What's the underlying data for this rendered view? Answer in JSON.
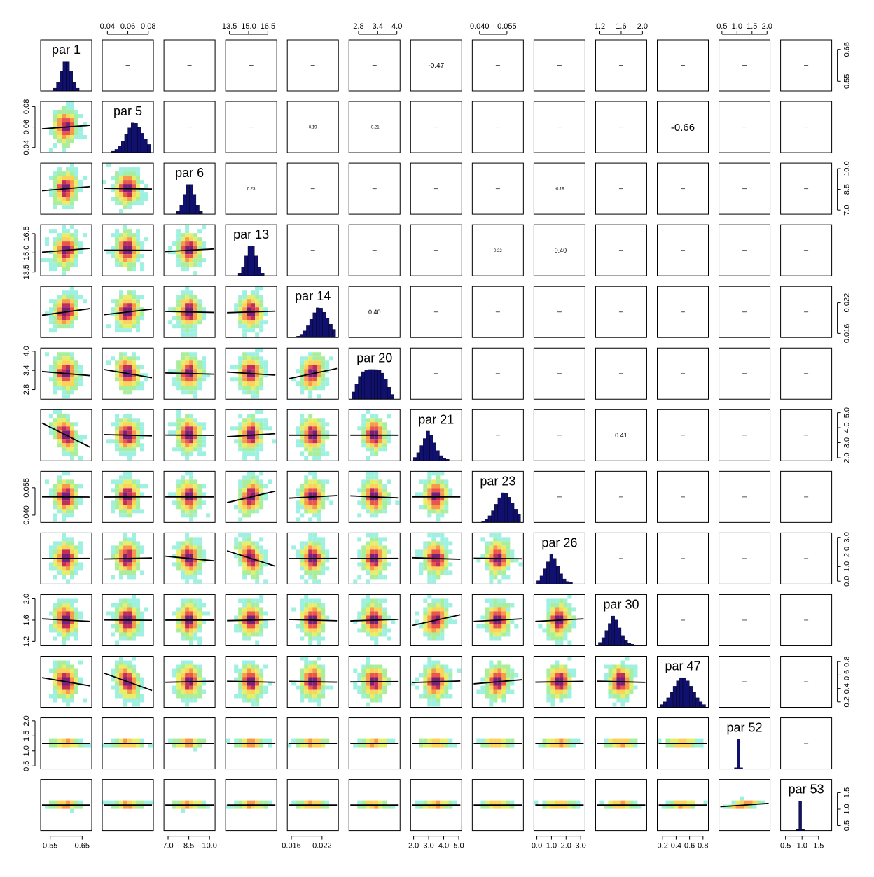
{
  "chart_data": {
    "type": "scatter",
    "subtype": "pairs-matrix",
    "parameters": [
      "par 1",
      "par 5",
      "par 6",
      "par 13",
      "par 14",
      "par 20",
      "par 21",
      "par 23",
      "par 26",
      "par 30",
      "par 47",
      "par 52",
      "par 53"
    ],
    "axis_ranges": [
      [
        0.52,
        0.68
      ],
      [
        0.035,
        0.085
      ],
      [
        6.7,
        10.4
      ],
      [
        13.2,
        17.2
      ],
      [
        0.0152,
        0.0252
      ],
      [
        2.5,
        4.1
      ],
      [
        1.8,
        5.2
      ],
      [
        0.036,
        0.064
      ],
      [
        -0.2,
        3.3
      ],
      [
        1.12,
        2.08
      ],
      [
        0.12,
        0.88
      ],
      [
        0.4,
        2.1
      ],
      [
        0.35,
        1.9
      ]
    ],
    "tick_labels": [
      [
        "0.55",
        "0.65"
      ],
      [
        "0.04",
        "0.06",
        "0.08"
      ],
      [
        "7.0",
        "8.5",
        "10.0"
      ],
      [
        "13.5",
        "15.0",
        "16.5"
      ],
      [
        "0.016",
        "0.022"
      ],
      [
        "2.8",
        "3.4",
        "4.0"
      ],
      [
        "2.0",
        "3.0",
        "4.0",
        "5.0"
      ],
      [
        "0.040",
        "0.055"
      ],
      [
        "0.0",
        "1.0",
        "2.0",
        "3.0"
      ],
      [
        "1.2",
        "1.6",
        "2.0"
      ],
      [
        "0.2",
        "0.4",
        "0.6",
        "0.8"
      ],
      [
        "0.5",
        "1.0",
        "1.5",
        "2.0"
      ],
      [
        "0.5",
        "1.0",
        "1.5"
      ]
    ],
    "tick_values": [
      [
        0.55,
        0.65
      ],
      [
        0.04,
        0.06,
        0.08
      ],
      [
        7.0,
        8.5,
        10.0
      ],
      [
        13.5,
        15.0,
        16.5
      ],
      [
        0.016,
        0.022
      ],
      [
        2.8,
        3.4,
        4.0
      ],
      [
        2.0,
        3.0,
        4.0,
        5.0
      ],
      [
        0.04,
        0.055
      ],
      [
        0.0,
        1.0,
        2.0,
        3.0
      ],
      [
        1.2,
        1.6,
        2.0
      ],
      [
        0.2,
        0.4,
        0.6,
        0.8
      ],
      [
        0.5,
        1.0,
        1.5,
        2.0
      ],
      [
        0.5,
        1.0,
        1.5
      ]
    ],
    "histogram_shape": [
      "normal",
      "left-skew",
      "normal",
      "normal",
      "left-skew",
      "plateau",
      "right-skew",
      "left-skew",
      "right-skew",
      "right-skew",
      "wide",
      "peak",
      "peak"
    ],
    "correlations_upper": [
      {
        "row": 0,
        "col": 6,
        "label": "-0.47",
        "r": -0.47
      },
      {
        "row": 1,
        "col": 4,
        "label": "0.19",
        "r": 0.19
      },
      {
        "row": 1,
        "col": 5,
        "label": "-0.21",
        "r": -0.21
      },
      {
        "row": 1,
        "col": 10,
        "label": "-0.66",
        "r": -0.66
      },
      {
        "row": 2,
        "col": 3,
        "label": "0.23",
        "r": 0.23
      },
      {
        "row": 2,
        "col": 8,
        "label": "-0.19",
        "r": -0.19
      },
      {
        "row": 3,
        "col": 7,
        "label": "0.22",
        "r": 0.22
      },
      {
        "row": 3,
        "col": 8,
        "label": "-0.40",
        "r": -0.4
      },
      {
        "row": 4,
        "col": 5,
        "label": "0.40",
        "r": 0.4
      },
      {
        "row": 6,
        "col": 9,
        "label": "0.41",
        "r": 0.41
      }
    ],
    "trend_slopes": [
      [
        0,
        0,
        0,
        0,
        0,
        0,
        0,
        0,
        0,
        0,
        0,
        0,
        0
      ],
      [
        0.14,
        0,
        0,
        0,
        0,
        0,
        0,
        0,
        0,
        0,
        0,
        0,
        0
      ],
      [
        0.16,
        -0.03,
        0,
        0,
        0,
        0,
        0,
        0,
        0,
        0,
        0,
        0,
        0
      ],
      [
        0.15,
        -0.01,
        0.1,
        0,
        0,
        0,
        0,
        0,
        0,
        0,
        0,
        0,
        0
      ],
      [
        0.26,
        0.22,
        -0.04,
        0.06,
        0,
        0,
        0,
        0,
        0,
        0,
        0,
        0,
        0
      ],
      [
        -0.16,
        -0.32,
        -0.05,
        -0.12,
        0.4,
        0,
        0,
        0,
        0,
        0,
        0,
        0,
        0
      ],
      [
        -0.95,
        -0.05,
        -0.01,
        0.12,
        0,
        0,
        0,
        0,
        0,
        0,
        0,
        0,
        0
      ],
      [
        -0.01,
        0.01,
        0,
        0.45,
        0.1,
        -0.08,
        0,
        0,
        0,
        0,
        0,
        0,
        0
      ],
      [
        0.01,
        0.04,
        -0.18,
        -0.6,
        0.01,
        0.01,
        -0.06,
        -0.02,
        0,
        0,
        0,
        0,
        0
      ],
      [
        -0.1,
        -0.01,
        0,
        0.04,
        -0.05,
        0.06,
        0.42,
        0.1,
        0.1,
        0,
        0,
        0,
        0
      ],
      [
        -0.32,
        -0.68,
        0.04,
        -0.04,
        -0.03,
        0.01,
        0.06,
        0.16,
        0.03,
        -0.05,
        0,
        0,
        0
      ],
      [
        0,
        0,
        0,
        0,
        0,
        0,
        0,
        0,
        0,
        0,
        0,
        0,
        0
      ],
      [
        0,
        0,
        0,
        0,
        0,
        0,
        0,
        0,
        0,
        0,
        0,
        0.13,
        0
      ]
    ],
    "density_colors": [
      "#9ef0e0",
      "#a8ee9c",
      "#e6ef6c",
      "#fbd25a",
      "#f79a4a",
      "#e9574c",
      "#c02f5c",
      "#7a2078"
    ],
    "histogram_color": "#101070",
    "grid": false
  }
}
